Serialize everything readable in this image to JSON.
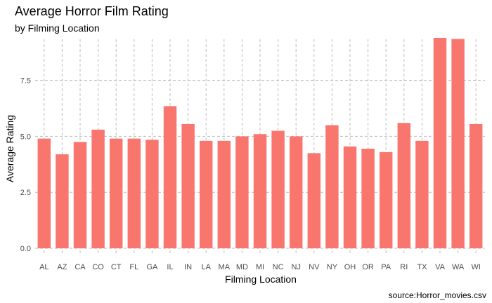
{
  "chart_data": {
    "type": "bar",
    "title": "Average Horror Film Rating",
    "subtitle": "by Filming Location",
    "caption": "source:Horror_movies.csv",
    "xlabel": "Filming Location",
    "ylabel": "Average Rating",
    "categories": [
      "AL",
      "AZ",
      "CA",
      "CO",
      "CT",
      "FL",
      "GA",
      "IL",
      "IN",
      "LA",
      "MA",
      "MD",
      "MI",
      "NC",
      "NJ",
      "NV",
      "NY",
      "OH",
      "OR",
      "PA",
      "RI",
      "TX",
      "VA",
      "WA",
      "WI"
    ],
    "values": [
      4.9,
      4.2,
      4.75,
      5.3,
      4.9,
      4.9,
      4.85,
      6.35,
      5.55,
      4.8,
      4.8,
      5.0,
      5.1,
      5.25,
      5.0,
      4.25,
      5.5,
      4.55,
      4.45,
      4.3,
      5.6,
      4.8,
      9.4,
      9.35,
      5.55
    ],
    "ylim": [
      0,
      9.4
    ],
    "yticks": [
      0.0,
      2.5,
      5.0,
      7.5
    ],
    "ytick_labels": [
      "0.0",
      "2.5",
      "5.0",
      "7.5"
    ],
    "grid": true,
    "legend": "none",
    "bar_color": "#F8766D",
    "grid_color": "#bdbdbd"
  }
}
